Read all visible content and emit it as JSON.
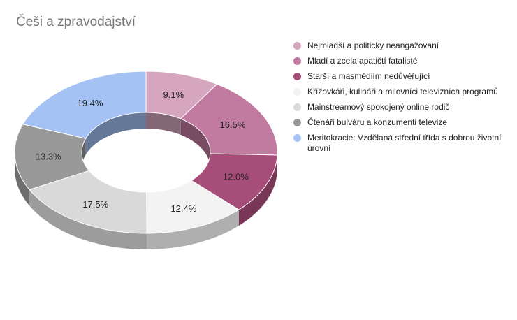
{
  "chart_data": {
    "type": "pie",
    "subtype": "donut-3d",
    "title": "Češi a zpravodajství",
    "legend_position": "right",
    "slices": [
      {
        "label": "Nejmladší a politicky neangažovaní",
        "value": 9.1,
        "value_label": "9.1%",
        "color": "#d5a6bd"
      },
      {
        "label": "Mladí a zcela apatičtí fatalisté",
        "value": 16.5,
        "value_label": "16.5%",
        "color": "#c27ba0"
      },
      {
        "label": "Starší a masmédiím nedůvěřující",
        "value": 12.0,
        "value_label": "12.0%",
        "color": "#a64d79"
      },
      {
        "label": "Křížovkáři, kulináři a milovníci televizních programů",
        "value": 12.4,
        "value_label": "12.4%",
        "color": "#f3f3f3"
      },
      {
        "label": "Mainstreamový spokojený online rodič",
        "value": 17.5,
        "value_label": "17.5%",
        "color": "#d9d9d9"
      },
      {
        "label": "Čtenáři bulváru a konzumenti televize",
        "value": 13.3,
        "value_label": "13.3%",
        "color": "#999999"
      },
      {
        "label": "Meritokracie: Vzdělaná střední třída s dobrou životní úrovní",
        "value": 19.4,
        "value_label": "19.4%",
        "color": "#a4c2f4"
      }
    ]
  }
}
